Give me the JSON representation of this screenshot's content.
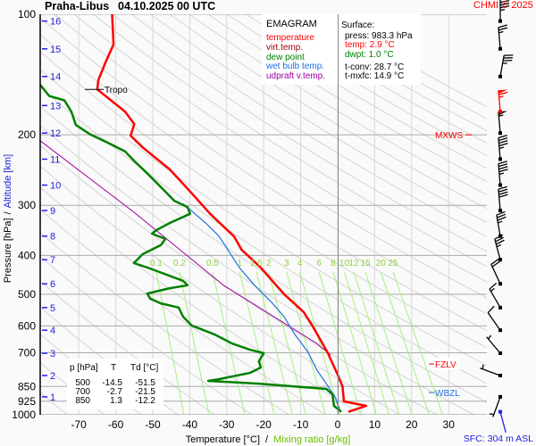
{
  "header": {
    "station": "Praha-Libus",
    "datetime": "04.10.2025 00 UTC",
    "copyright": "CHMI © 2025"
  },
  "legend": {
    "title": "EMAGRAM",
    "items": [
      {
        "label": "temperature",
        "color": "#ff0000"
      },
      {
        "label": "virt.temp.",
        "color": "#a00000"
      },
      {
        "label": "dew point",
        "color": "#008000"
      },
      {
        "label": "wet bulb temp.",
        "color": "#2070e0"
      },
      {
        "label": "udpraft v.temp.",
        "color": "#a000a0"
      }
    ]
  },
  "surface": {
    "title": "Surface:",
    "press": "press: 983.3 hPa",
    "temp": "temp: 2.9 °C",
    "dwpt": "dwpt: 1.0 °C",
    "tconv": "t-conv: 28.7 °C",
    "tmxfc": "t-mxfc: 14.9 °C"
  },
  "table": {
    "headers": [
      "p [hPa]",
      "T",
      "Td [°C]"
    ],
    "rows": [
      [
        "500",
        "-14.5",
        "-51.5"
      ],
      [
        "700",
        "-2.7",
        "-21.5"
      ],
      [
        "850",
        "1.3",
        "-12.2"
      ]
    ]
  },
  "markers": {
    "tropo": {
      "label": "Tropo",
      "p": 154
    },
    "mxws": {
      "label": "MXWS",
      "p": 200
    },
    "fzlv": {
      "label": "FZLV",
      "p": 747
    },
    "wbzl": {
      "label": "WBZL",
      "p": 880
    }
  },
  "sfc_label": "SFC: 304 m ASL",
  "chart_data": {
    "type": "line",
    "title": "EMAGRAM",
    "xlabel": "Temperature [°C]",
    "xlabel_sep": "/",
    "xlabel2": "Mixing ratio [g/kg]",
    "ylabel": "Pressure [hPa]",
    "ylabel_sep": "/",
    "ylabel2": "Altitude [km]",
    "xlim": [
      -80.4,
      40.3
    ],
    "ylim": [
      1000,
      100
    ],
    "yscale": "log",
    "x_ticks": [
      "-70",
      "-60",
      "-50",
      "-40",
      "-30",
      "-20",
      "-10",
      "0",
      "10",
      "20",
      "30"
    ],
    "x_tick_values": [
      -70,
      -60,
      -50,
      -40,
      -30,
      -20,
      -10,
      0,
      10,
      20,
      30
    ],
    "y_ticks": [
      "100",
      "200",
      "300",
      "400",
      "500",
      "600",
      "700",
      "850",
      "925",
      "1000"
    ],
    "y_tick_values": [
      100,
      200,
      300,
      400,
      500,
      600,
      700,
      850,
      925,
      1000
    ],
    "altitude_ticks": [
      {
        "km": "1",
        "p": 902
      },
      {
        "km": "2",
        "p": 798
      },
      {
        "km": "3",
        "p": 702
      },
      {
        "km": "4",
        "p": 615
      },
      {
        "km": "5",
        "p": 540
      },
      {
        "km": "6",
        "p": 471
      },
      {
        "km": "7",
        "p": 410
      },
      {
        "km": "8",
        "p": 358
      },
      {
        "km": "9",
        "p": 309
      },
      {
        "km": "10",
        "p": 267
      },
      {
        "km": "11",
        "p": 230
      },
      {
        "km": "12",
        "p": 198
      },
      {
        "km": "13",
        "p": 169
      },
      {
        "km": "14",
        "p": 143
      },
      {
        "km": "15",
        "p": 122
      },
      {
        "km": "16",
        "p": 104
      }
    ],
    "mixing_ratio_labels": [
      "0.1",
      "0.2",
      "0.5",
      "1",
      "1.5",
      "2",
      "3",
      "4",
      "6",
      "8",
      "10",
      "12",
      "15",
      "20",
      "25"
    ],
    "mixing_ratio_values": [
      0.1,
      0.2,
      0.5,
      1,
      1.5,
      2,
      3,
      4,
      6,
      8,
      10,
      12,
      15,
      20,
      25
    ],
    "series": [
      {
        "name": "temperature",
        "color": "#ff0000",
        "points": [
          [
            983,
            2.9
          ],
          [
            950,
            7.7
          ],
          [
            926,
            1.7
          ],
          [
            849,
            1.3
          ],
          [
            794,
            0
          ],
          [
            700,
            -2.7
          ],
          [
            600,
            -6.8
          ],
          [
            554,
            -9.2
          ],
          [
            500,
            -14.5
          ],
          [
            429,
            -20.8
          ],
          [
            387,
            -26
          ],
          [
            359,
            -28
          ],
          [
            315,
            -34.5
          ],
          [
            277,
            -39.9
          ],
          [
            244,
            -45.4
          ],
          [
            215,
            -52.7
          ],
          [
            201,
            -56
          ],
          [
            188,
            -55
          ],
          [
            175,
            -57.5
          ],
          [
            154,
            -65
          ],
          [
            146,
            -64.7
          ],
          [
            132,
            -62.8
          ],
          [
            119,
            -60.6
          ],
          [
            100,
            -61
          ]
        ]
      },
      {
        "name": "dew point",
        "color": "#008000",
        "points": [
          [
            983,
            1.0
          ],
          [
            950,
            -1
          ],
          [
            889,
            -1.4
          ],
          [
            862,
            -3.1
          ],
          [
            849,
            -12.1
          ],
          [
            836,
            -21.3
          ],
          [
            823,
            -35
          ],
          [
            815,
            -32.1
          ],
          [
            786,
            -23.7
          ],
          [
            762,
            -20.8
          ],
          [
            735,
            -21.3
          ],
          [
            702,
            -20
          ],
          [
            688,
            -23.7
          ],
          [
            664,
            -28.5
          ],
          [
            630,
            -33.3
          ],
          [
            599,
            -39.4
          ],
          [
            569,
            -41.8
          ],
          [
            540,
            -43
          ],
          [
            527,
            -47.8
          ],
          [
            513,
            -50.7
          ],
          [
            498,
            -51.5
          ],
          [
            483,
            -45.4
          ],
          [
            475,
            -40.6
          ],
          [
            463,
            -41.8
          ],
          [
            429,
            -51.4
          ],
          [
            418,
            -55.1
          ],
          [
            397,
            -52.7
          ],
          [
            377,
            -47.8
          ],
          [
            364,
            -46.6
          ],
          [
            353,
            -50.2
          ],
          [
            346,
            -49
          ],
          [
            332,
            -45.4
          ],
          [
            315,
            -39.9
          ],
          [
            303,
            -40.6
          ],
          [
            292,
            -44.2
          ],
          [
            270,
            -47.8
          ],
          [
            250,
            -51.4
          ],
          [
            232,
            -55.1
          ],
          [
            220,
            -57.5
          ],
          [
            209,
            -62.3
          ],
          [
            199,
            -67.1
          ],
          [
            189,
            -70.8
          ],
          [
            175,
            -72
          ],
          [
            164,
            -73.9
          ],
          [
            160,
            -78
          ],
          [
            150,
            -80.4
          ]
        ]
      },
      {
        "name": "wet bulb temp.",
        "color": "#2070e0",
        "points": [
          [
            983,
            0
          ],
          [
            965,
            0.5
          ],
          [
            903,
            -0.7
          ],
          [
            836,
            -3.1
          ],
          [
            774,
            -5.6
          ],
          [
            698,
            -8
          ],
          [
            630,
            -11.6
          ],
          [
            569,
            -14.5
          ],
          [
            527,
            -17.6
          ],
          [
            475,
            -22.5
          ],
          [
            429,
            -26.6
          ],
          [
            387,
            -29.7
          ],
          [
            358,
            -32.1
          ],
          [
            332,
            -35.7
          ],
          [
            297,
            -41.8
          ]
        ]
      },
      {
        "name": "udpraft v.temp.",
        "color": "#a000a0",
        "points": [
          [
            709,
            -1.9
          ],
          [
            664,
            -5.6
          ],
          [
            475,
            -30.9
          ],
          [
            312,
            -55.1
          ],
          [
            207,
            -80.4
          ]
        ]
      }
    ],
    "wind_barbs": [
      {
        "p": 983,
        "dir": 165,
        "kt": 2,
        "surface": true
      },
      {
        "p": 902,
        "dir": 200,
        "kt": 5
      },
      {
        "p": 798,
        "dir": 290,
        "kt": 5
      },
      {
        "p": 702,
        "dir": 320,
        "kt": 5
      },
      {
        "p": 615,
        "dir": 325,
        "kt": 10
      },
      {
        "p": 540,
        "dir": 330,
        "kt": 15
      },
      {
        "p": 471,
        "dir": 335,
        "kt": 20
      },
      {
        "p": 410,
        "dir": 345,
        "kt": 35
      },
      {
        "p": 358,
        "dir": 350,
        "kt": 35
      },
      {
        "p": 309,
        "dir": 355,
        "kt": 40
      },
      {
        "p": 267,
        "dir": 355,
        "kt": 45
      },
      {
        "p": 230,
        "dir": 355,
        "kt": 45
      },
      {
        "p": 198,
        "dir": 355,
        "kt": 55
      },
      {
        "p": 175,
        "dir": 355,
        "kt": 65,
        "max": true
      },
      {
        "p": 143,
        "dir": 10,
        "kt": 35
      },
      {
        "p": 122,
        "dir": 355,
        "kt": 25
      },
      {
        "p": 104,
        "dir": 0,
        "kt": 45
      }
    ]
  }
}
